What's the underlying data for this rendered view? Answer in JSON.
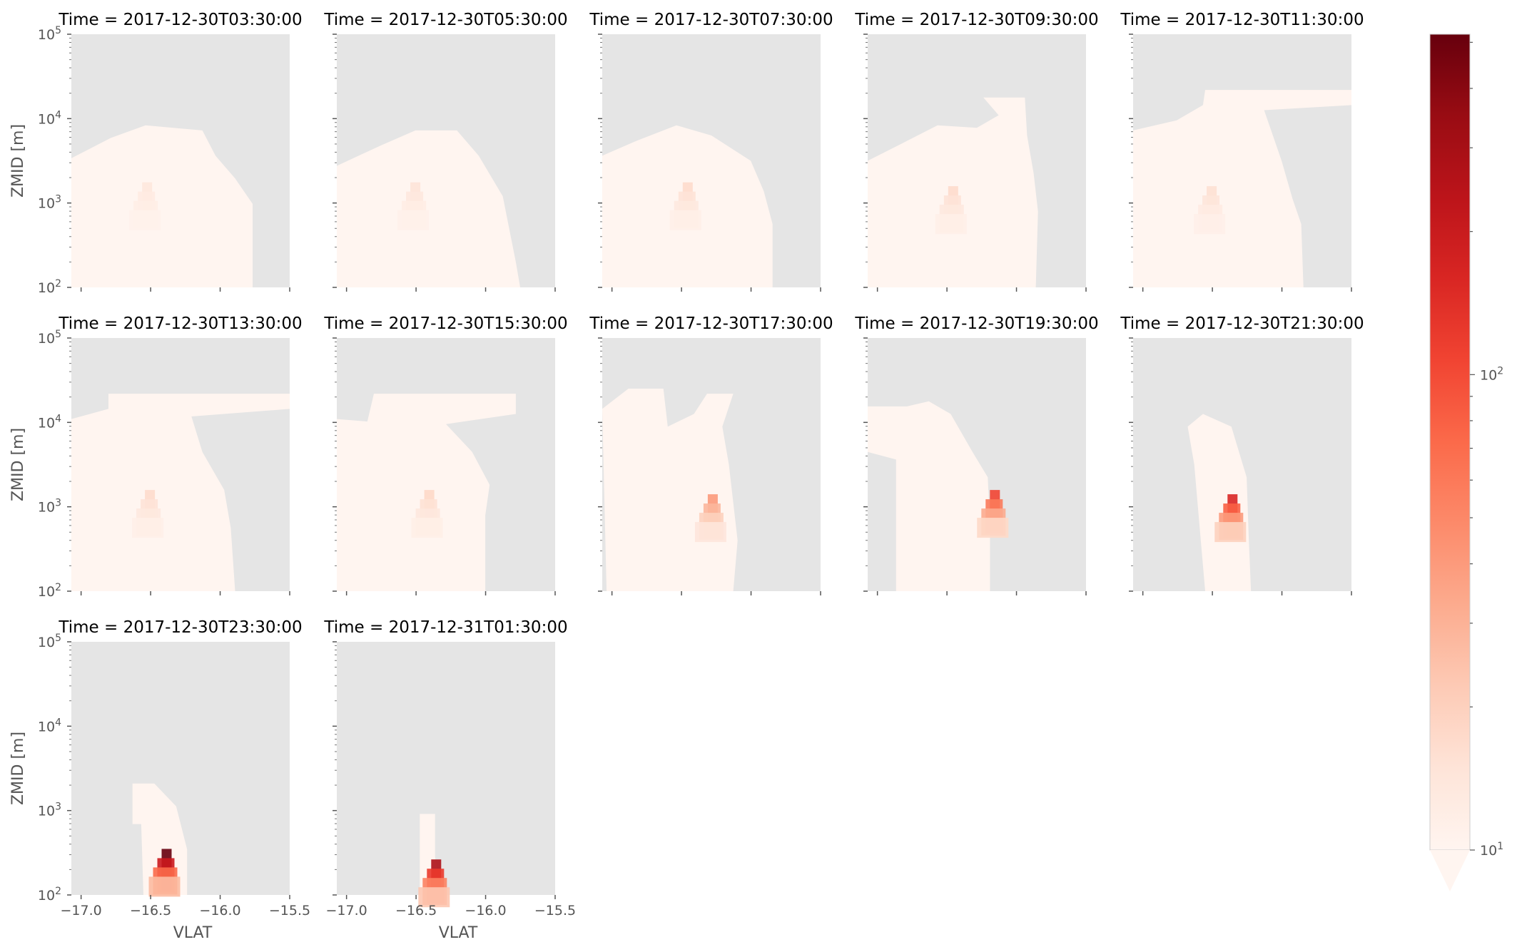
{
  "chart_data": {
    "type": "heatmap",
    "layout": "small-multiples",
    "xlabel": "VLAT",
    "ylabel": "ZMID [m]",
    "x_ticks": [
      "−17.0",
      "−16.5",
      "−16.0",
      "−15.5"
    ],
    "x_tick_values": [
      -17.0,
      -16.5,
      -16.0,
      -15.5
    ],
    "xlim": [
      -17.07,
      -15.5
    ],
    "y_scale": "log",
    "ylim": [
      100,
      100000
    ],
    "y_ticks": [
      {
        "base": "10",
        "exp": "2"
      },
      {
        "base": "10",
        "exp": "3"
      },
      {
        "base": "10",
        "exp": "4"
      },
      {
        "base": "10",
        "exp": "5"
      }
    ],
    "y_tick_values": [
      100,
      1000,
      10000,
      100000
    ],
    "colormap": "Reds",
    "colorbar": {
      "scale": "log",
      "extend": "min",
      "range": [
        10,
        520
      ],
      "ticks": [
        {
          "base": "10",
          "exp": "1",
          "value": 10
        },
        {
          "base": "10",
          "exp": "2",
          "value": 100
        }
      ]
    },
    "background": "#e5e5e5",
    "colors": {
      "low": "#fff5f0",
      "high": "#67000d"
    },
    "panels": [
      {
        "title": "Time = 2017-12-30T03:30:00",
        "core": [
          {
            "lat": -16.52,
            "z": 1000,
            "level": 0.08
          }
        ]
      },
      {
        "title": "Time = 2017-12-30T05:30:00",
        "core": [
          {
            "lat": -16.5,
            "z": 1000,
            "level": 0.1
          }
        ]
      },
      {
        "title": "Time = 2017-12-30T07:30:00",
        "core": [
          {
            "lat": -16.45,
            "z": 1000,
            "level": 0.14
          }
        ]
      },
      {
        "title": "Time = 2017-12-30T09:30:00",
        "core": [
          {
            "lat": -16.45,
            "z": 900,
            "level": 0.14
          }
        ]
      },
      {
        "title": "Time = 2017-12-30T11:30:00",
        "core": [
          {
            "lat": -16.5,
            "z": 900,
            "level": 0.12
          }
        ]
      },
      {
        "title": "Time = 2017-12-30T13:30:00",
        "core": [
          {
            "lat": -16.5,
            "z": 900,
            "level": 0.14
          }
        ]
      },
      {
        "title": "Time = 2017-12-30T15:30:00",
        "core": [
          {
            "lat": -16.4,
            "z": 900,
            "level": 0.15
          }
        ]
      },
      {
        "title": "Time = 2017-12-30T17:30:00",
        "core": [
          {
            "lat": -16.27,
            "z": 800,
            "level": 0.35
          }
        ]
      },
      {
        "title": "Time = 2017-12-30T19:30:00",
        "core": [
          {
            "lat": -16.15,
            "z": 900,
            "level": 0.6
          }
        ]
      },
      {
        "title": "Time = 2017-12-30T21:30:00",
        "core": [
          {
            "lat": -16.35,
            "z": 800,
            "level": 0.7
          }
        ]
      },
      {
        "title": "Time = 2017-12-30T23:30:00",
        "core": [
          {
            "lat": -16.38,
            "z": 200,
            "level": 1.0
          }
        ]
      },
      {
        "title": "Time = 2017-12-31T01:30:00",
        "core": [
          {
            "lat": -16.35,
            "z": 150,
            "level": 0.85
          }
        ]
      }
    ],
    "grid": {
      "rows": 3,
      "cols": 5,
      "x_labels_on_rows": [
        2
      ],
      "y_labels_on_cols": [
        0
      ]
    }
  }
}
